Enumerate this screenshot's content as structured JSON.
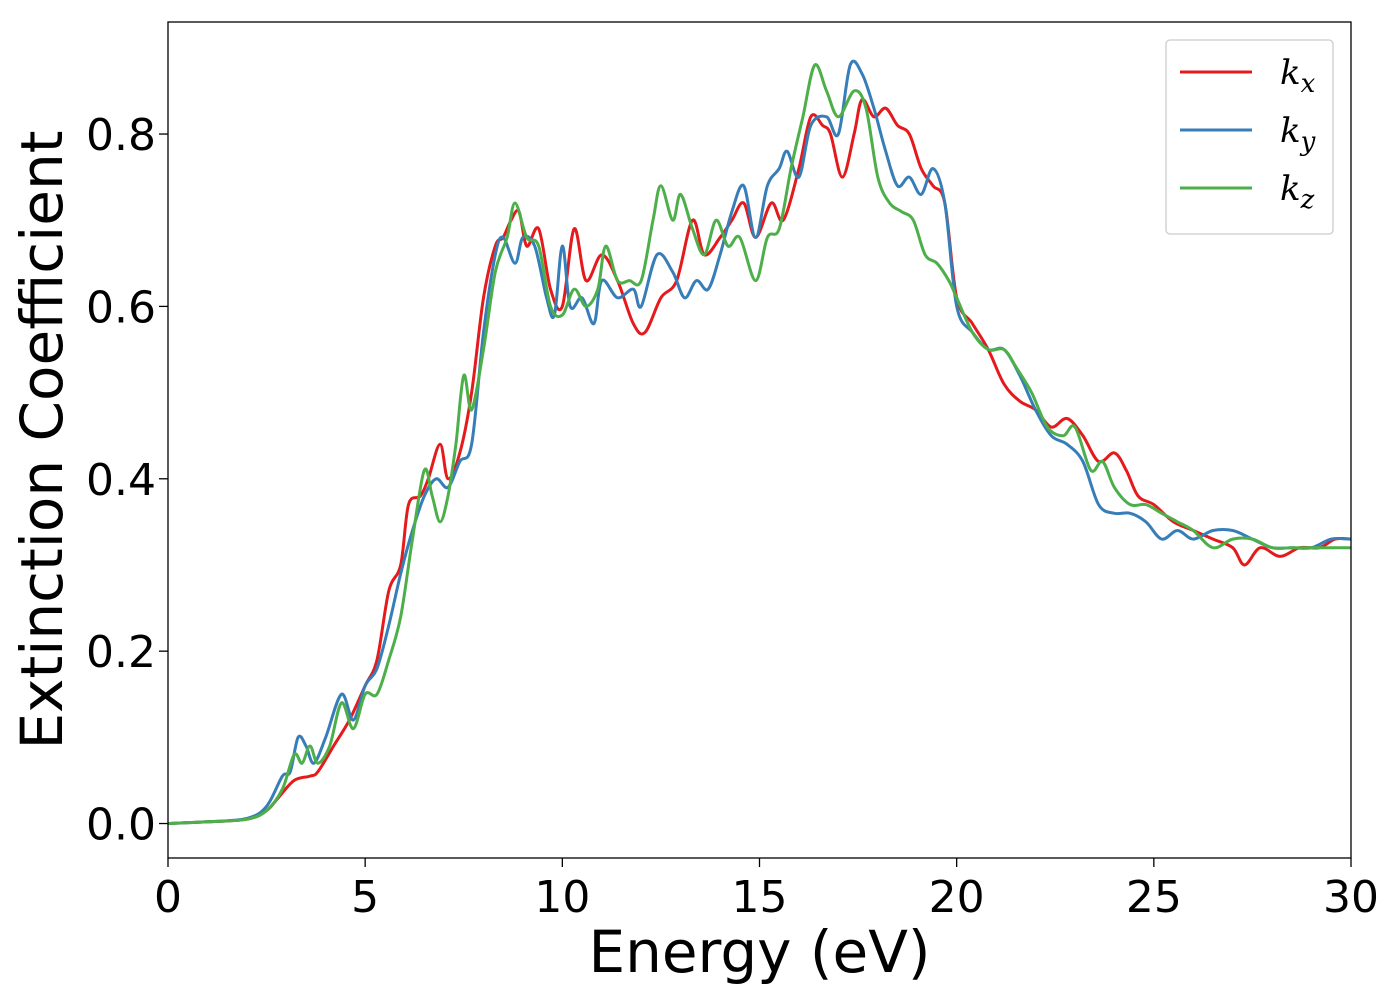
{
  "chart_data": {
    "type": "line",
    "title": "",
    "xlabel": "Energy (eV)",
    "ylabel": "Extinction Coefficient",
    "xlim": [
      0,
      30
    ],
    "ylim": [
      -0.04,
      0.93
    ],
    "xticks": [
      0,
      5,
      10,
      15,
      20,
      25,
      30
    ],
    "yticks": [
      0.0,
      0.2,
      0.4,
      0.6,
      0.8
    ],
    "ytick_labels": [
      "0.0",
      "0.2",
      "0.4",
      "0.6",
      "0.8"
    ],
    "grid": false,
    "legend_position": "top-right",
    "series": [
      {
        "name": "k_x",
        "legend_base": "k",
        "legend_sub": "x",
        "color": "#e41a1c",
        "points": [
          [
            0,
            0.0
          ],
          [
            1,
            0.002
          ],
          [
            2,
            0.005
          ],
          [
            2.5,
            0.015
          ],
          [
            2.8,
            0.03
          ],
          [
            3.2,
            0.05
          ],
          [
            3.6,
            0.055
          ],
          [
            3.8,
            0.06
          ],
          [
            4.2,
            0.09
          ],
          [
            4.6,
            0.12
          ],
          [
            5.0,
            0.16
          ],
          [
            5.3,
            0.19
          ],
          [
            5.6,
            0.27
          ],
          [
            5.9,
            0.3
          ],
          [
            6.1,
            0.37
          ],
          [
            6.4,
            0.38
          ],
          [
            6.6,
            0.4
          ],
          [
            6.9,
            0.44
          ],
          [
            7.1,
            0.4
          ],
          [
            7.4,
            0.43
          ],
          [
            7.7,
            0.5
          ],
          [
            8.0,
            0.61
          ],
          [
            8.3,
            0.67
          ],
          [
            8.5,
            0.68
          ],
          [
            8.7,
            0.7
          ],
          [
            8.9,
            0.71
          ],
          [
            9.1,
            0.67
          ],
          [
            9.4,
            0.69
          ],
          [
            9.7,
            0.62
          ],
          [
            10.0,
            0.6
          ],
          [
            10.3,
            0.69
          ],
          [
            10.6,
            0.63
          ],
          [
            11.0,
            0.66
          ],
          [
            11.4,
            0.63
          ],
          [
            11.8,
            0.58
          ],
          [
            12.1,
            0.57
          ],
          [
            12.5,
            0.61
          ],
          [
            12.9,
            0.63
          ],
          [
            13.3,
            0.7
          ],
          [
            13.6,
            0.66
          ],
          [
            14.0,
            0.68
          ],
          [
            14.3,
            0.7
          ],
          [
            14.6,
            0.72
          ],
          [
            14.9,
            0.68
          ],
          [
            15.3,
            0.72
          ],
          [
            15.6,
            0.7
          ],
          [
            16.0,
            0.76
          ],
          [
            16.3,
            0.82
          ],
          [
            16.6,
            0.81
          ],
          [
            16.8,
            0.8
          ],
          [
            17.1,
            0.75
          ],
          [
            17.4,
            0.8
          ],
          [
            17.6,
            0.84
          ],
          [
            17.9,
            0.82
          ],
          [
            18.2,
            0.83
          ],
          [
            18.5,
            0.81
          ],
          [
            18.8,
            0.8
          ],
          [
            19.1,
            0.76
          ],
          [
            19.4,
            0.74
          ],
          [
            19.7,
            0.72
          ],
          [
            20.0,
            0.61
          ],
          [
            20.4,
            0.58
          ],
          [
            20.8,
            0.55
          ],
          [
            21.2,
            0.51
          ],
          [
            21.6,
            0.49
          ],
          [
            22.0,
            0.48
          ],
          [
            22.4,
            0.46
          ],
          [
            22.8,
            0.47
          ],
          [
            23.2,
            0.45
          ],
          [
            23.6,
            0.42
          ],
          [
            24.0,
            0.43
          ],
          [
            24.3,
            0.41
          ],
          [
            24.6,
            0.38
          ],
          [
            25.0,
            0.37
          ],
          [
            25.5,
            0.35
          ],
          [
            26.0,
            0.34
          ],
          [
            26.5,
            0.33
          ],
          [
            27.0,
            0.32
          ],
          [
            27.3,
            0.3
          ],
          [
            27.7,
            0.32
          ],
          [
            28.2,
            0.31
          ],
          [
            28.7,
            0.32
          ],
          [
            29.2,
            0.32
          ],
          [
            29.6,
            0.33
          ],
          [
            30.0,
            0.33
          ]
        ]
      },
      {
        "name": "k_y",
        "legend_base": "k",
        "legend_sub": "y",
        "color": "#377eb8",
        "points": [
          [
            0,
            0.0
          ],
          [
            1,
            0.002
          ],
          [
            2,
            0.006
          ],
          [
            2.5,
            0.02
          ],
          [
            2.9,
            0.055
          ],
          [
            3.1,
            0.06
          ],
          [
            3.3,
            0.1
          ],
          [
            3.5,
            0.09
          ],
          [
            3.7,
            0.07
          ],
          [
            4.0,
            0.1
          ],
          [
            4.4,
            0.15
          ],
          [
            4.7,
            0.12
          ],
          [
            5.0,
            0.16
          ],
          [
            5.3,
            0.18
          ],
          [
            5.6,
            0.23
          ],
          [
            5.9,
            0.29
          ],
          [
            6.2,
            0.34
          ],
          [
            6.5,
            0.38
          ],
          [
            6.8,
            0.4
          ],
          [
            7.1,
            0.39
          ],
          [
            7.4,
            0.42
          ],
          [
            7.7,
            0.44
          ],
          [
            8.0,
            0.57
          ],
          [
            8.3,
            0.66
          ],
          [
            8.5,
            0.68
          ],
          [
            8.8,
            0.65
          ],
          [
            9.0,
            0.68
          ],
          [
            9.3,
            0.67
          ],
          [
            9.6,
            0.61
          ],
          [
            9.8,
            0.59
          ],
          [
            10.0,
            0.67
          ],
          [
            10.2,
            0.6
          ],
          [
            10.5,
            0.61
          ],
          [
            10.8,
            0.58
          ],
          [
            11.0,
            0.63
          ],
          [
            11.4,
            0.61
          ],
          [
            11.8,
            0.62
          ],
          [
            12.0,
            0.6
          ],
          [
            12.4,
            0.66
          ],
          [
            12.8,
            0.64
          ],
          [
            13.1,
            0.61
          ],
          [
            13.4,
            0.63
          ],
          [
            13.7,
            0.62
          ],
          [
            14.0,
            0.66
          ],
          [
            14.3,
            0.71
          ],
          [
            14.6,
            0.74
          ],
          [
            14.9,
            0.68
          ],
          [
            15.2,
            0.74
          ],
          [
            15.5,
            0.76
          ],
          [
            15.7,
            0.78
          ],
          [
            16.0,
            0.75
          ],
          [
            16.3,
            0.81
          ],
          [
            16.7,
            0.82
          ],
          [
            17.0,
            0.8
          ],
          [
            17.3,
            0.88
          ],
          [
            17.6,
            0.87
          ],
          [
            17.9,
            0.83
          ],
          [
            18.2,
            0.78
          ],
          [
            18.5,
            0.74
          ],
          [
            18.8,
            0.75
          ],
          [
            19.1,
            0.73
          ],
          [
            19.4,
            0.76
          ],
          [
            19.7,
            0.72
          ],
          [
            20.0,
            0.6
          ],
          [
            20.4,
            0.57
          ],
          [
            20.8,
            0.55
          ],
          [
            21.2,
            0.55
          ],
          [
            21.6,
            0.52
          ],
          [
            22.0,
            0.48
          ],
          [
            22.4,
            0.45
          ],
          [
            22.8,
            0.44
          ],
          [
            23.2,
            0.42
          ],
          [
            23.6,
            0.37
          ],
          [
            24.0,
            0.36
          ],
          [
            24.4,
            0.36
          ],
          [
            24.8,
            0.35
          ],
          [
            25.2,
            0.33
          ],
          [
            25.6,
            0.34
          ],
          [
            26.0,
            0.33
          ],
          [
            26.5,
            0.34
          ],
          [
            27.0,
            0.34
          ],
          [
            27.5,
            0.33
          ],
          [
            28.0,
            0.32
          ],
          [
            28.5,
            0.32
          ],
          [
            29.0,
            0.32
          ],
          [
            29.5,
            0.33
          ],
          [
            30.0,
            0.33
          ]
        ]
      },
      {
        "name": "k_z",
        "legend_base": "k",
        "legend_sub": "z",
        "color": "#4daf4a",
        "points": [
          [
            0,
            0.0
          ],
          [
            1,
            0.002
          ],
          [
            2,
            0.005
          ],
          [
            2.5,
            0.015
          ],
          [
            2.9,
            0.04
          ],
          [
            3.2,
            0.08
          ],
          [
            3.4,
            0.07
          ],
          [
            3.6,
            0.09
          ],
          [
            3.8,
            0.07
          ],
          [
            4.1,
            0.09
          ],
          [
            4.4,
            0.14
          ],
          [
            4.7,
            0.11
          ],
          [
            5.0,
            0.15
          ],
          [
            5.3,
            0.15
          ],
          [
            5.6,
            0.19
          ],
          [
            5.9,
            0.24
          ],
          [
            6.2,
            0.33
          ],
          [
            6.5,
            0.41
          ],
          [
            6.7,
            0.38
          ],
          [
            6.9,
            0.35
          ],
          [
            7.1,
            0.38
          ],
          [
            7.3,
            0.44
          ],
          [
            7.5,
            0.52
          ],
          [
            7.7,
            0.48
          ],
          [
            8.0,
            0.55
          ],
          [
            8.3,
            0.64
          ],
          [
            8.6,
            0.68
          ],
          [
            8.8,
            0.72
          ],
          [
            9.1,
            0.68
          ],
          [
            9.4,
            0.67
          ],
          [
            9.7,
            0.6
          ],
          [
            10.0,
            0.59
          ],
          [
            10.3,
            0.62
          ],
          [
            10.6,
            0.6
          ],
          [
            10.9,
            0.62
          ],
          [
            11.1,
            0.67
          ],
          [
            11.4,
            0.63
          ],
          [
            11.7,
            0.63
          ],
          [
            12.0,
            0.63
          ],
          [
            12.3,
            0.7
          ],
          [
            12.5,
            0.74
          ],
          [
            12.8,
            0.7
          ],
          [
            13.0,
            0.73
          ],
          [
            13.3,
            0.69
          ],
          [
            13.6,
            0.66
          ],
          [
            13.9,
            0.7
          ],
          [
            14.2,
            0.67
          ],
          [
            14.5,
            0.68
          ],
          [
            14.9,
            0.63
          ],
          [
            15.2,
            0.68
          ],
          [
            15.5,
            0.69
          ],
          [
            15.8,
            0.76
          ],
          [
            16.1,
            0.82
          ],
          [
            16.4,
            0.88
          ],
          [
            16.7,
            0.85
          ],
          [
            17.0,
            0.82
          ],
          [
            17.4,
            0.85
          ],
          [
            17.7,
            0.83
          ],
          [
            18.0,
            0.75
          ],
          [
            18.3,
            0.72
          ],
          [
            18.6,
            0.71
          ],
          [
            18.9,
            0.7
          ],
          [
            19.2,
            0.66
          ],
          [
            19.5,
            0.65
          ],
          [
            19.8,
            0.63
          ],
          [
            20.0,
            0.61
          ],
          [
            20.4,
            0.57
          ],
          [
            20.8,
            0.55
          ],
          [
            21.2,
            0.55
          ],
          [
            21.5,
            0.53
          ],
          [
            21.9,
            0.5
          ],
          [
            22.3,
            0.46
          ],
          [
            22.7,
            0.45
          ],
          [
            23.0,
            0.46
          ],
          [
            23.4,
            0.41
          ],
          [
            23.7,
            0.42
          ],
          [
            24.0,
            0.39
          ],
          [
            24.4,
            0.37
          ],
          [
            24.8,
            0.37
          ],
          [
            25.2,
            0.36
          ],
          [
            25.6,
            0.35
          ],
          [
            26.0,
            0.34
          ],
          [
            26.5,
            0.32
          ],
          [
            27.0,
            0.33
          ],
          [
            27.5,
            0.33
          ],
          [
            28.0,
            0.32
          ],
          [
            28.5,
            0.32
          ],
          [
            29.0,
            0.32
          ],
          [
            29.5,
            0.32
          ],
          [
            30.0,
            0.32
          ]
        ]
      }
    ]
  }
}
